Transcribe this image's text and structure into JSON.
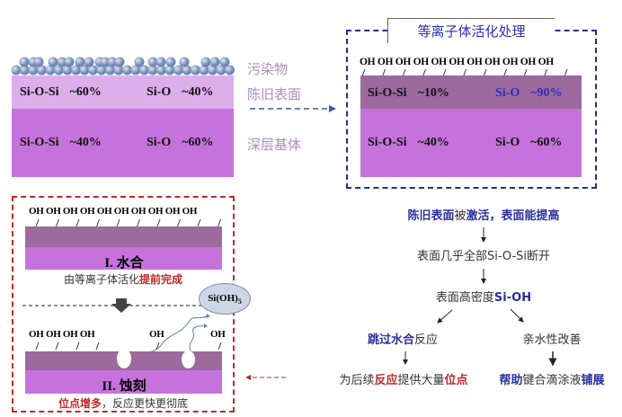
{
  "left_panel": {
    "labels": {
      "contaminant": "污染物",
      "old_surface": "陈旧表面",
      "deep_substrate": "深层基体"
    },
    "old_surface": {
      "a": "Si-O-Si",
      "a_pct": "~60%",
      "b": "Si-O",
      "b_pct": "~40%"
    },
    "deep": {
      "a": "Si-O-Si",
      "a_pct": "~40%",
      "b": "Si-O",
      "b_pct": "~60%"
    }
  },
  "right_panel": {
    "title": "等离子体活化处理",
    "oh": "OH OH OH OH OH OH OH OH OH OH OH",
    "top": {
      "a": "Si-O-Si",
      "a_pct": "~10%",
      "b": "Si-O",
      "b_pct": "~90%"
    },
    "deep": {
      "a": "Si-O-Si",
      "a_pct": "~40%",
      "b": "Si-O",
      "b_pct": "~60%"
    }
  },
  "process_panel": {
    "oh_row1": "OH OH OH OH OH OH OH OH OH OH",
    "step1": "I. 水合",
    "caption1_a": "由等离子体活化",
    "caption1_b": "提前完成",
    "product": "Si(OH)",
    "product_sub": "5",
    "oh_row2a": "OH OH OH OH",
    "oh_row2b": "OH",
    "oh_row2c": "OH",
    "step2": "II. 蚀刻",
    "caption2_a": "位点增多",
    "caption2_b": "，反应更快更彻底"
  },
  "flow": {
    "l1_a": "陈旧表面",
    "l1_b": "被",
    "l1_c": "激活",
    "l1_d": "，表面能提高",
    "l2": "表面几乎全部Si-O-Si断开",
    "l3_a": "表面高密度",
    "l3_b": "Si-OH",
    "l4_left_a": "跳过水合",
    "l4_left_b": "反应",
    "l4_right": "亲水性改善",
    "l5_left_a": "为后续",
    "l5_left_b": "反应",
    "l5_left_c": "提供大量",
    "l5_left_d": "位点",
    "l5_right_a": "帮助",
    "l5_right_b": "键合滴涂液",
    "l5_right_c": "铺展"
  },
  "colors": {
    "light_purple": "#dcaeea",
    "purple": "#c672dc",
    "dark_purple": "#9c6a9c",
    "blue": "#2b2f9e",
    "red": "#c0282a"
  }
}
